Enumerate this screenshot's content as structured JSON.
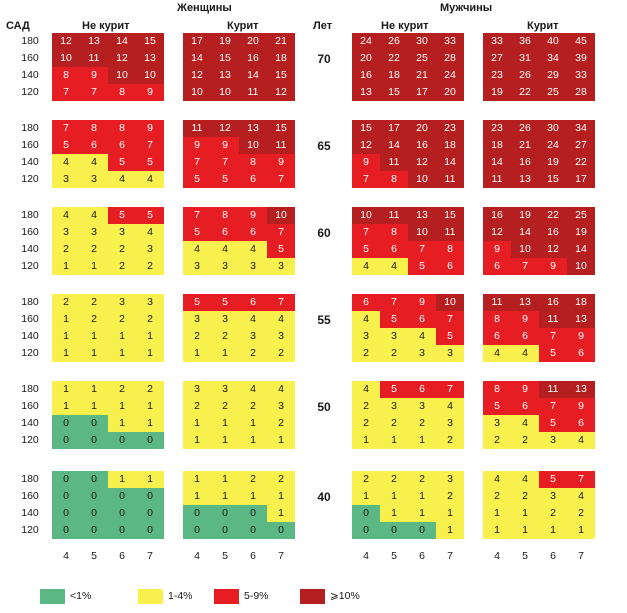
{
  "chart_data": {
    "type": "heatmap",
    "title": "",
    "header": {
      "women": "Женщины",
      "men": "Мужчины",
      "sbp": "САД",
      "age": "Лет",
      "nonsmoker": "Не курит",
      "smoker": "Курит"
    },
    "sbp_levels": [
      "180",
      "160",
      "140",
      "120"
    ],
    "cholesterol": [
      "4",
      "5",
      "6",
      "7"
    ],
    "ages": [
      "70",
      "65",
      "60",
      "55",
      "50",
      "40"
    ],
    "colors": {
      "green": "#5bb884",
      "yellow": "#f8f04c",
      "red": "#e61e24",
      "darkred": "#b51f1f"
    },
    "legend": [
      {
        "label": "<1%",
        "color": "green"
      },
      {
        "label": "1-4%",
        "color": "yellow"
      },
      {
        "label": "5-9%",
        "color": "red"
      },
      {
        "label": "⩾10%",
        "color": "darkred"
      }
    ],
    "values": {
      "70": {
        "women_nonsmoker": [
          [
            12,
            13,
            14,
            15
          ],
          [
            10,
            11,
            12,
            13
          ],
          [
            8,
            9,
            10,
            10
          ],
          [
            7,
            7,
            8,
            9
          ]
        ],
        "women_smoker": [
          [
            17,
            19,
            20,
            21
          ],
          [
            14,
            15,
            16,
            18
          ],
          [
            12,
            13,
            14,
            15
          ],
          [
            10,
            10,
            11,
            12
          ]
        ],
        "men_nonsmoker": [
          [
            24,
            26,
            30,
            33
          ],
          [
            20,
            22,
            25,
            28
          ],
          [
            16,
            18,
            21,
            24
          ],
          [
            13,
            15,
            17,
            20
          ]
        ],
        "men_smoker": [
          [
            33,
            36,
            40,
            45
          ],
          [
            27,
            31,
            34,
            39
          ],
          [
            23,
            26,
            29,
            33
          ],
          [
            19,
            22,
            25,
            28
          ]
        ]
      },
      "65": {
        "women_nonsmoker": [
          [
            7,
            8,
            8,
            9
          ],
          [
            5,
            6,
            6,
            7
          ],
          [
            4,
            4,
            5,
            5
          ],
          [
            3,
            3,
            4,
            4
          ]
        ],
        "women_smoker": [
          [
            11,
            12,
            13,
            15
          ],
          [
            9,
            9,
            10,
            11
          ],
          [
            7,
            7,
            8,
            9
          ],
          [
            5,
            5,
            6,
            7
          ]
        ],
        "men_nonsmoker": [
          [
            15,
            17,
            20,
            23
          ],
          [
            12,
            14,
            16,
            18
          ],
          [
            9,
            11,
            12,
            14
          ],
          [
            7,
            8,
            10,
            11
          ]
        ],
        "men_smoker": [
          [
            23,
            26,
            30,
            34
          ],
          [
            18,
            21,
            24,
            27
          ],
          [
            14,
            16,
            19,
            22
          ],
          [
            11,
            13,
            15,
            17
          ]
        ]
      },
      "60": {
        "women_nonsmoker": [
          [
            4,
            4,
            5,
            5
          ],
          [
            3,
            3,
            3,
            4
          ],
          [
            2,
            2,
            2,
            3
          ],
          [
            1,
            1,
            2,
            2
          ]
        ],
        "women_smoker": [
          [
            7,
            8,
            9,
            10
          ],
          [
            5,
            6,
            6,
            7
          ],
          [
            4,
            4,
            4,
            5
          ],
          [
            3,
            3,
            3,
            3
          ]
        ],
        "men_nonsmoker": [
          [
            10,
            11,
            13,
            15
          ],
          [
            7,
            8,
            10,
            11
          ],
          [
            5,
            6,
            7,
            8
          ],
          [
            4,
            4,
            5,
            6
          ]
        ],
        "men_smoker": [
          [
            16,
            19,
            22,
            25
          ],
          [
            12,
            14,
            16,
            19
          ],
          [
            9,
            10,
            12,
            14
          ],
          [
            6,
            7,
            9,
            10
          ]
        ]
      },
      "55": {
        "women_nonsmoker": [
          [
            2,
            2,
            3,
            3
          ],
          [
            1,
            2,
            2,
            2
          ],
          [
            1,
            1,
            1,
            1
          ],
          [
            1,
            1,
            1,
            1
          ]
        ],
        "women_smoker": [
          [
            5,
            5,
            6,
            7
          ],
          [
            3,
            3,
            4,
            4
          ],
          [
            2,
            2,
            3,
            3
          ],
          [
            1,
            1,
            2,
            2
          ]
        ],
        "men_nonsmoker": [
          [
            6,
            7,
            9,
            10
          ],
          [
            4,
            5,
            6,
            7
          ],
          [
            3,
            3,
            4,
            5
          ],
          [
            2,
            2,
            3,
            3
          ]
        ],
        "men_smoker": [
          [
            11,
            13,
            16,
            18
          ],
          [
            8,
            9,
            11,
            13
          ],
          [
            6,
            6,
            7,
            9
          ],
          [
            4,
            4,
            5,
            6
          ]
        ]
      },
      "50": {
        "women_nonsmoker": [
          [
            1,
            1,
            2,
            2
          ],
          [
            1,
            1,
            1,
            1
          ],
          [
            0,
            0,
            1,
            1
          ],
          [
            0,
            0,
            0,
            0
          ]
        ],
        "women_smoker": [
          [
            3,
            3,
            4,
            4
          ],
          [
            2,
            2,
            2,
            3
          ],
          [
            1,
            1,
            1,
            2
          ],
          [
            1,
            1,
            1,
            1
          ]
        ],
        "men_nonsmoker": [
          [
            4,
            5,
            6,
            7
          ],
          [
            2,
            3,
            3,
            4
          ],
          [
            2,
            2,
            2,
            3
          ],
          [
            1,
            1,
            1,
            2
          ]
        ],
        "men_smoker": [
          [
            8,
            9,
            11,
            13
          ],
          [
            5,
            6,
            7,
            9
          ],
          [
            3,
            4,
            5,
            6
          ],
          [
            2,
            2,
            3,
            4
          ]
        ]
      },
      "40": {
        "women_nonsmoker": [
          [
            0,
            0,
            1,
            1
          ],
          [
            0,
            0,
            0,
            0
          ],
          [
            0,
            0,
            0,
            0
          ],
          [
            0,
            0,
            0,
            0
          ]
        ],
        "women_smoker": [
          [
            1,
            1,
            2,
            2
          ],
          [
            1,
            1,
            1,
            1
          ],
          [
            0,
            0,
            0,
            1
          ],
          [
            0,
            0,
            0,
            0
          ]
        ],
        "men_nonsmoker": [
          [
            2,
            2,
            2,
            3
          ],
          [
            1,
            1,
            1,
            2
          ],
          [
            0,
            1,
            1,
            1
          ],
          [
            0,
            0,
            0,
            1
          ]
        ],
        "men_smoker": [
          [
            4,
            4,
            5,
            7
          ],
          [
            2,
            2,
            3,
            4
          ],
          [
            1,
            1,
            2,
            2
          ],
          [
            1,
            1,
            1,
            1
          ]
        ]
      }
    }
  }
}
